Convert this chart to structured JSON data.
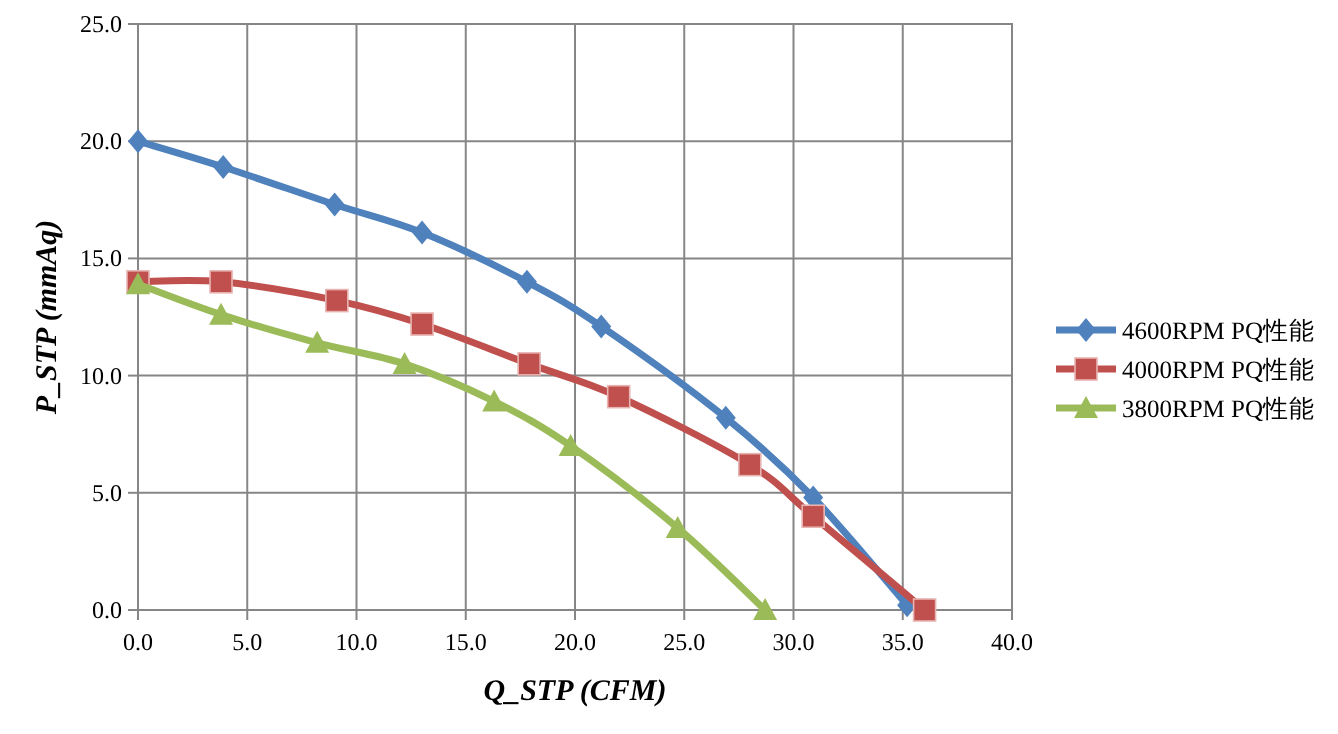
{
  "chart_data": {
    "type": "line",
    "xlabel": "Q_STP (CFM)",
    "ylabel": "P_STP (mmAq)",
    "xlim": [
      0,
      40
    ],
    "ylim": [
      0,
      25
    ],
    "xticks": [
      {
        "value": 0,
        "label": "0.0"
      },
      {
        "value": 5,
        "label": "5.0"
      },
      {
        "value": 10,
        "label": "10.0"
      },
      {
        "value": 15,
        "label": "15.0"
      },
      {
        "value": 20,
        "label": "20.0"
      },
      {
        "value": 25,
        "label": "25.0"
      },
      {
        "value": 30,
        "label": "30.0"
      },
      {
        "value": 35,
        "label": "35.0"
      },
      {
        "value": 40,
        "label": "40.0"
      }
    ],
    "yticks": [
      {
        "value": 0,
        "label": "0.0"
      },
      {
        "value": 5,
        "label": "5.0"
      },
      {
        "value": 10,
        "label": "10.0"
      },
      {
        "value": 15,
        "label": "15.0"
      },
      {
        "value": 20,
        "label": "20.0"
      },
      {
        "value": 25,
        "label": "25.0"
      }
    ],
    "grid": true,
    "legend": "right",
    "line_style": "solid",
    "series": [
      {
        "name": "4600RPM PQ性能",
        "color": "#4f81bd",
        "marker": "diamond",
        "x": [
          0,
          3.9,
          9.0,
          13.0,
          17.8,
          21.2,
          26.9,
          30.9,
          35.2
        ],
        "values": [
          20.0,
          18.9,
          17.3,
          16.1,
          14.0,
          12.1,
          8.2,
          4.8,
          0.2
        ]
      },
      {
        "name": "4000RPM PQ性能",
        "color": "#c0504d",
        "marker": "square",
        "x": [
          0,
          3.8,
          9.1,
          13.0,
          17.9,
          22.0,
          28.0,
          30.9,
          36.0
        ],
        "values": [
          14.0,
          14.0,
          13.2,
          12.2,
          10.5,
          9.1,
          6.2,
          4.0,
          0.0
        ]
      },
      {
        "name": "3800RPM PQ性能",
        "color": "#9bbb59",
        "marker": "triangle",
        "x": [
          0,
          3.8,
          8.2,
          12.2,
          16.3,
          19.8,
          24.7,
          28.7
        ],
        "values": [
          13.9,
          12.6,
          11.4,
          10.5,
          8.9,
          7.0,
          3.5,
          0.0
        ]
      }
    ]
  }
}
